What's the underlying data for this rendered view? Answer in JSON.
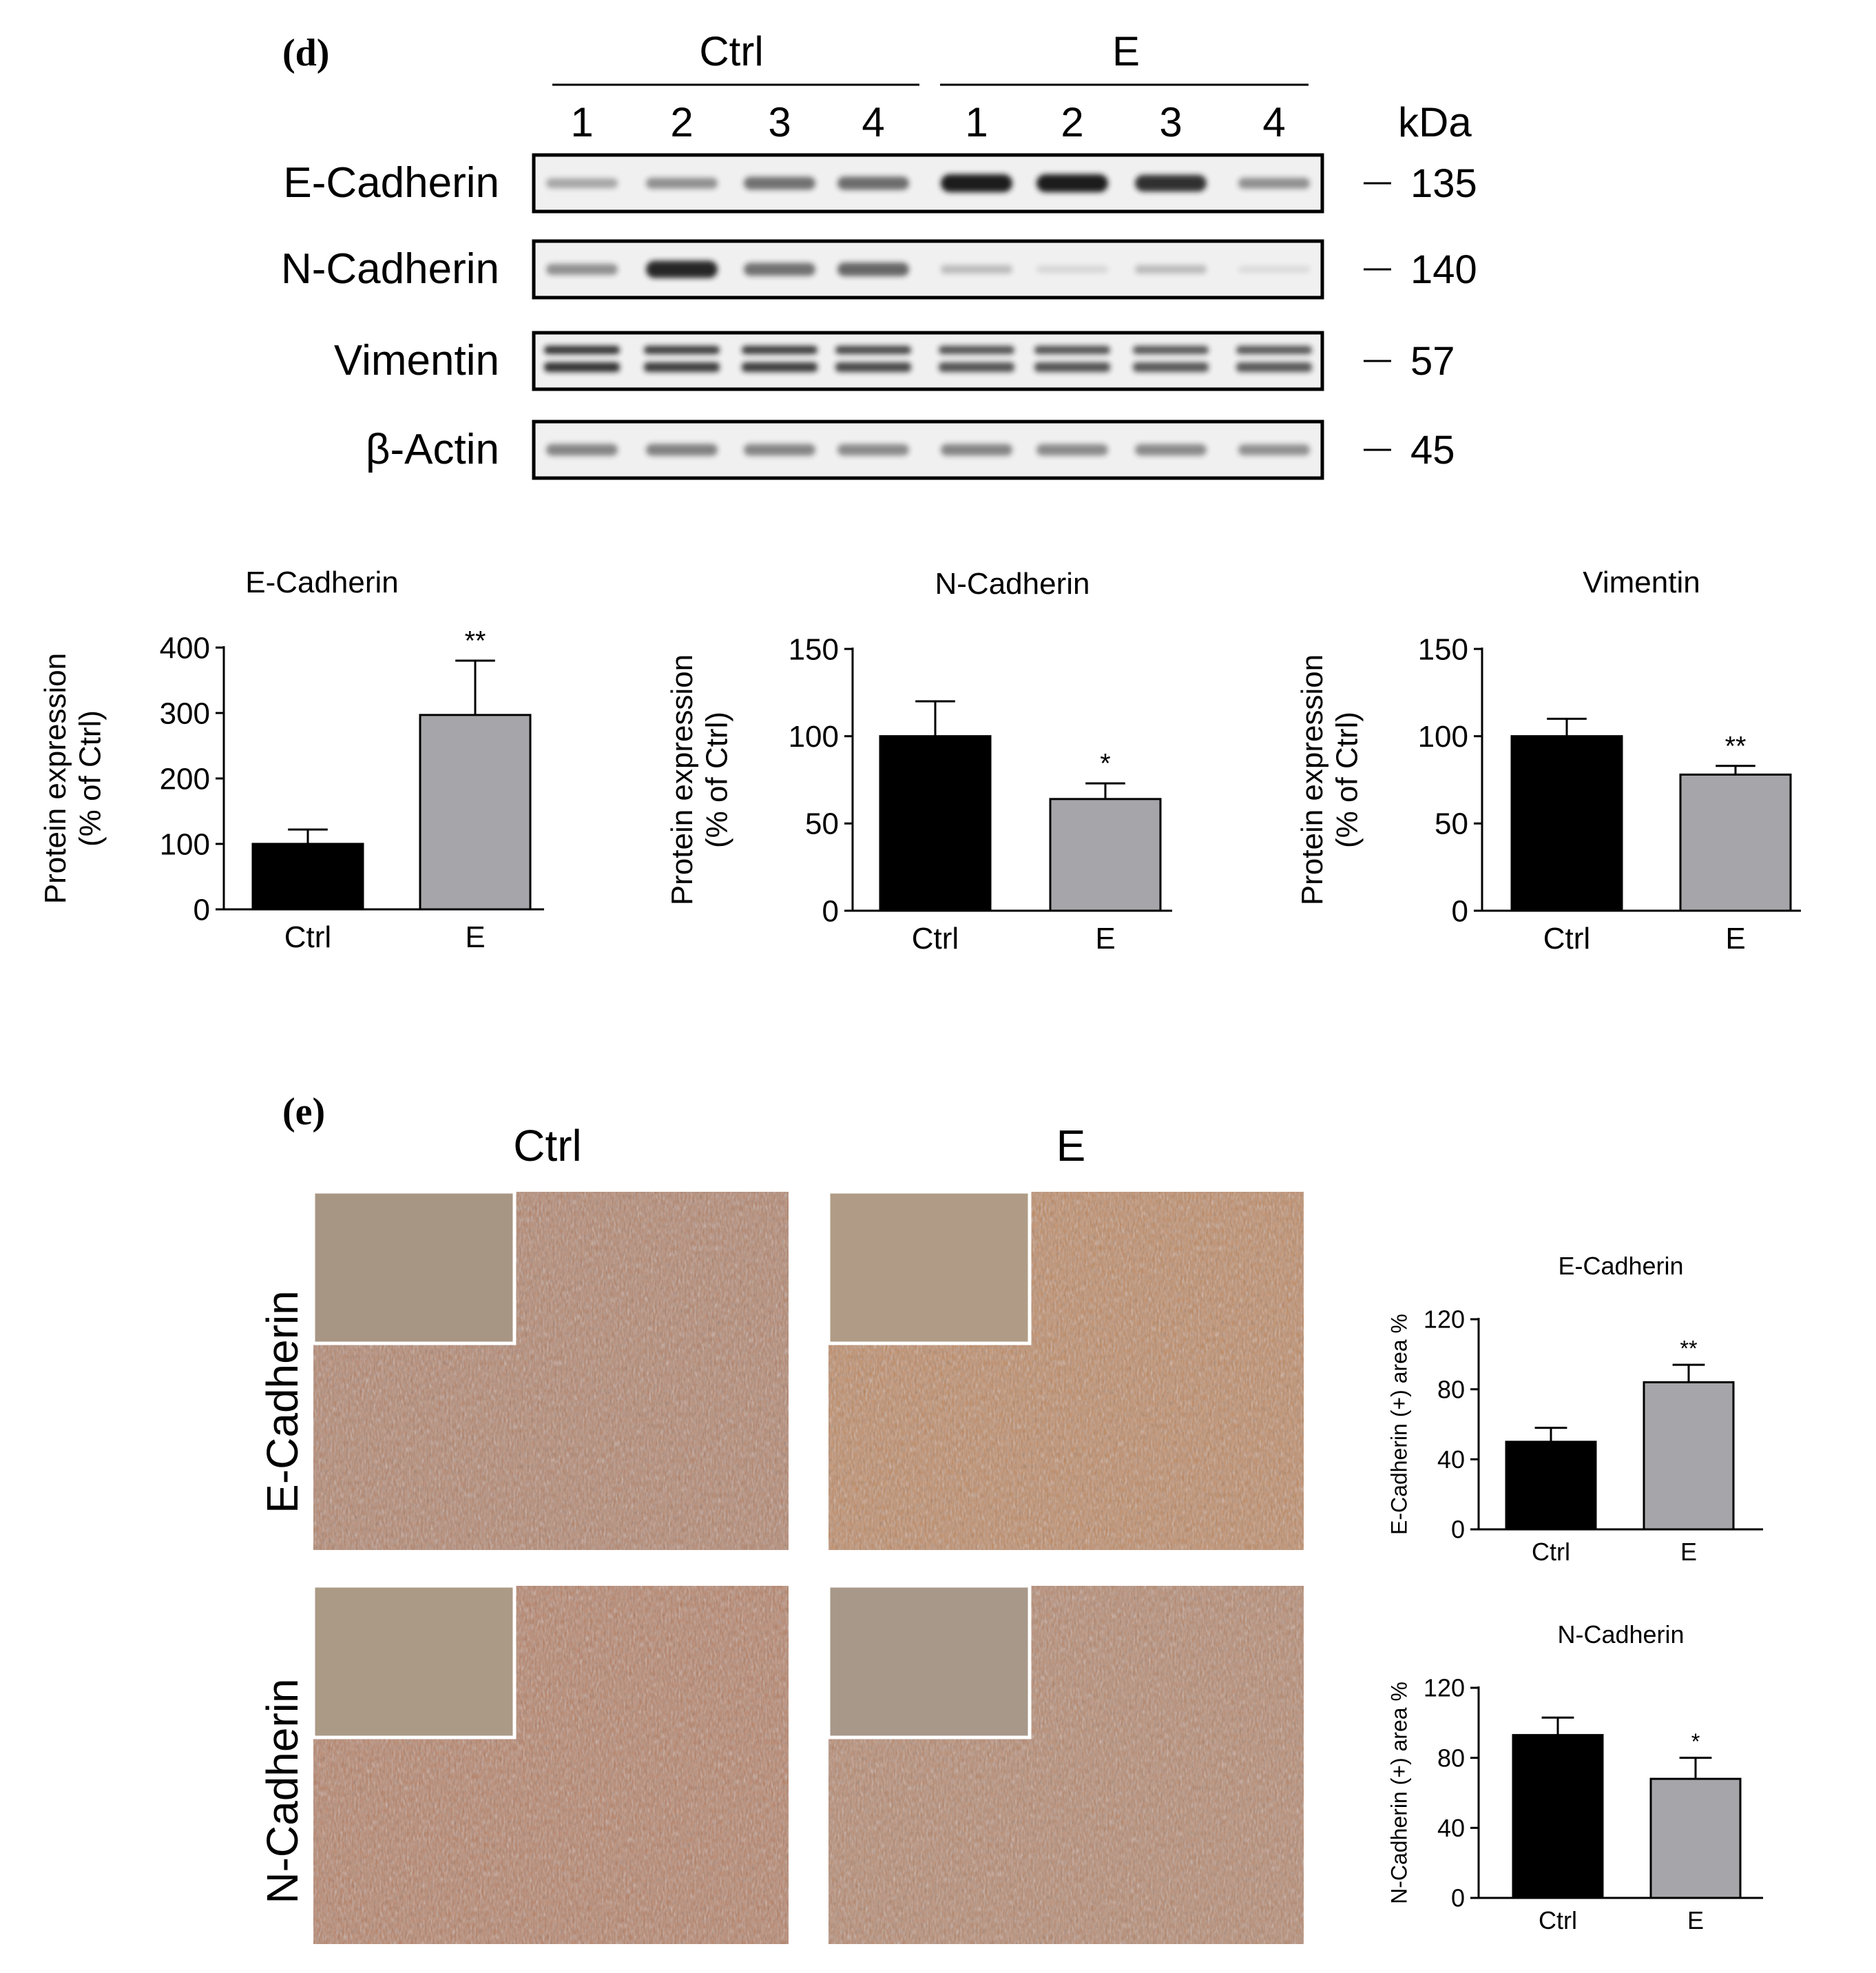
{
  "panel_d": {
    "letter": "(d)",
    "groups": [
      "Ctrl",
      "E"
    ],
    "lanes": [
      "1",
      "2",
      "3",
      "4",
      "1",
      "2",
      "3",
      "4"
    ],
    "kda_label": "kDa",
    "blots": [
      {
        "label": "E-Cadherin",
        "kda": "135",
        "bands": [
          0.35,
          0.45,
          0.6,
          0.62,
          1.0,
          1.0,
          0.9,
          0.45
        ]
      },
      {
        "label": "N-Cadherin",
        "kda": "140",
        "bands": [
          0.45,
          0.95,
          0.6,
          0.65,
          0.25,
          0.12,
          0.25,
          0.1
        ]
      },
      {
        "label": "Vimentin",
        "kda": "57",
        "bands": [
          0.9,
          0.85,
          0.85,
          0.8,
          0.75,
          0.75,
          0.72,
          0.72
        ]
      },
      {
        "label": "β-Actin",
        "kda": "45",
        "bands": [
          0.5,
          0.52,
          0.5,
          0.48,
          0.5,
          0.48,
          0.48,
          0.45
        ]
      }
    ]
  },
  "panel_e": {
    "letter": "(e)",
    "col_labels": [
      "Ctrl",
      "E"
    ],
    "row_labels": [
      "E-Cadherin",
      "N-Cadherin"
    ]
  },
  "colors": {
    "ctrl_bar": "#000000",
    "e_bar": "#a6a6aa",
    "blot_bg": "#f0f0f0",
    "band": "#1a1a1a",
    "tissue": "#b07f62"
  },
  "chart_data": [
    {
      "type": "bar",
      "title": "E-Cadherin",
      "ylabel": "Protein expression (% of Ctrl)",
      "ylabel_lines": [
        "Protein expression",
        "(% of Ctrl)"
      ],
      "categories": [
        "Ctrl",
        "E"
      ],
      "values": [
        100,
        297
      ],
      "errors": [
        22,
        83
      ],
      "significance": [
        "",
        "**"
      ],
      "ylim": [
        0,
        400
      ],
      "yticks": [
        0,
        100,
        200,
        300,
        400
      ]
    },
    {
      "type": "bar",
      "title": "N-Cadherin",
      "ylabel": "Protein expression (% of Ctrl)",
      "ylabel_lines": [
        "Protein expression",
        "(% of Ctrl)"
      ],
      "categories": [
        "Ctrl",
        "E"
      ],
      "values": [
        100,
        64
      ],
      "errors": [
        20,
        9
      ],
      "significance": [
        "",
        "*"
      ],
      "ylim": [
        0,
        150
      ],
      "yticks": [
        0,
        50,
        100,
        150
      ]
    },
    {
      "type": "bar",
      "title": "Vimentin",
      "ylabel": "Protein expression (% of Ctrl)",
      "ylabel_lines": [
        "Protein expression",
        "(% of Ctrl)"
      ],
      "categories": [
        "Ctrl",
        "E"
      ],
      "values": [
        100,
        78
      ],
      "errors": [
        10,
        5
      ],
      "significance": [
        "",
        "**"
      ],
      "ylim": [
        0,
        150
      ],
      "yticks": [
        0,
        50,
        100,
        150
      ]
    },
    {
      "type": "bar",
      "title": "E-Cadherin",
      "ylabel": "E-Cadherin (+) area %",
      "ylabel_lines": [
        "E-Cadherin (+) area %"
      ],
      "categories": [
        "Ctrl",
        "E"
      ],
      "values": [
        50,
        84
      ],
      "errors": [
        8,
        10
      ],
      "significance": [
        "",
        "**"
      ],
      "ylim": [
        0,
        120
      ],
      "yticks": [
        0,
        40,
        80,
        120
      ]
    },
    {
      "type": "bar",
      "title": "N-Cadherin",
      "ylabel": "N-Cadherin (+) area %",
      "ylabel_lines": [
        "N-Cadherin (+) area %"
      ],
      "categories": [
        "Ctrl",
        "E"
      ],
      "values": [
        93,
        68
      ],
      "errors": [
        10,
        12
      ],
      "significance": [
        "",
        "*"
      ],
      "ylim": [
        0,
        120
      ],
      "yticks": [
        0,
        40,
        80,
        120
      ]
    }
  ]
}
